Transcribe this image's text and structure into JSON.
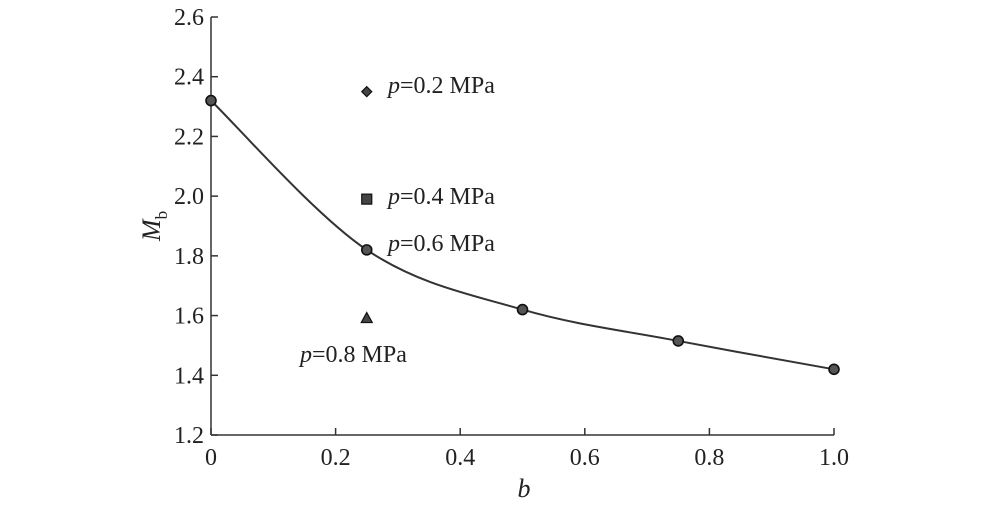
{
  "chart_data": {
    "type": "line",
    "xlabel": "b",
    "ylabel_main": "M",
    "ylabel_sub": "b",
    "xlim": [
      0,
      1.0
    ],
    "ylim": [
      1.2,
      2.6
    ],
    "xticks": [
      0,
      0.2,
      0.4,
      0.6,
      0.8,
      1.0
    ],
    "xtick_labels": [
      "0",
      "0.2",
      "0.4",
      "0.6",
      "0.8",
      "1.0"
    ],
    "yticks": [
      1.2,
      1.4,
      1.6,
      1.8,
      2.0,
      2.2,
      2.4,
      2.6
    ],
    "ytick_labels": [
      "1.2",
      "1.4",
      "1.6",
      "1.8",
      "2.0",
      "2.2",
      "2.4",
      "2.6"
    ],
    "grid": false,
    "series": [
      {
        "marker": "circle",
        "x": [
          0,
          0.25,
          0.5,
          0.75,
          1.0
        ],
        "y": [
          2.32,
          1.82,
          1.62,
          1.515,
          1.42
        ]
      }
    ],
    "points": [
      {
        "marker": "diamond",
        "x": 0.25,
        "y": 2.35
      },
      {
        "marker": "square",
        "x": 0.25,
        "y": 1.99
      },
      {
        "marker": "triangle",
        "x": 0.25,
        "y": 1.59
      }
    ],
    "annotations": [
      {
        "var": "p",
        "text": "=0.2 MPa"
      },
      {
        "var": "p",
        "text": "=0.4 MPa"
      },
      {
        "var": "p",
        "text": "=0.6 MPa"
      },
      {
        "var": "p",
        "text": "=0.8 MPa"
      }
    ]
  }
}
